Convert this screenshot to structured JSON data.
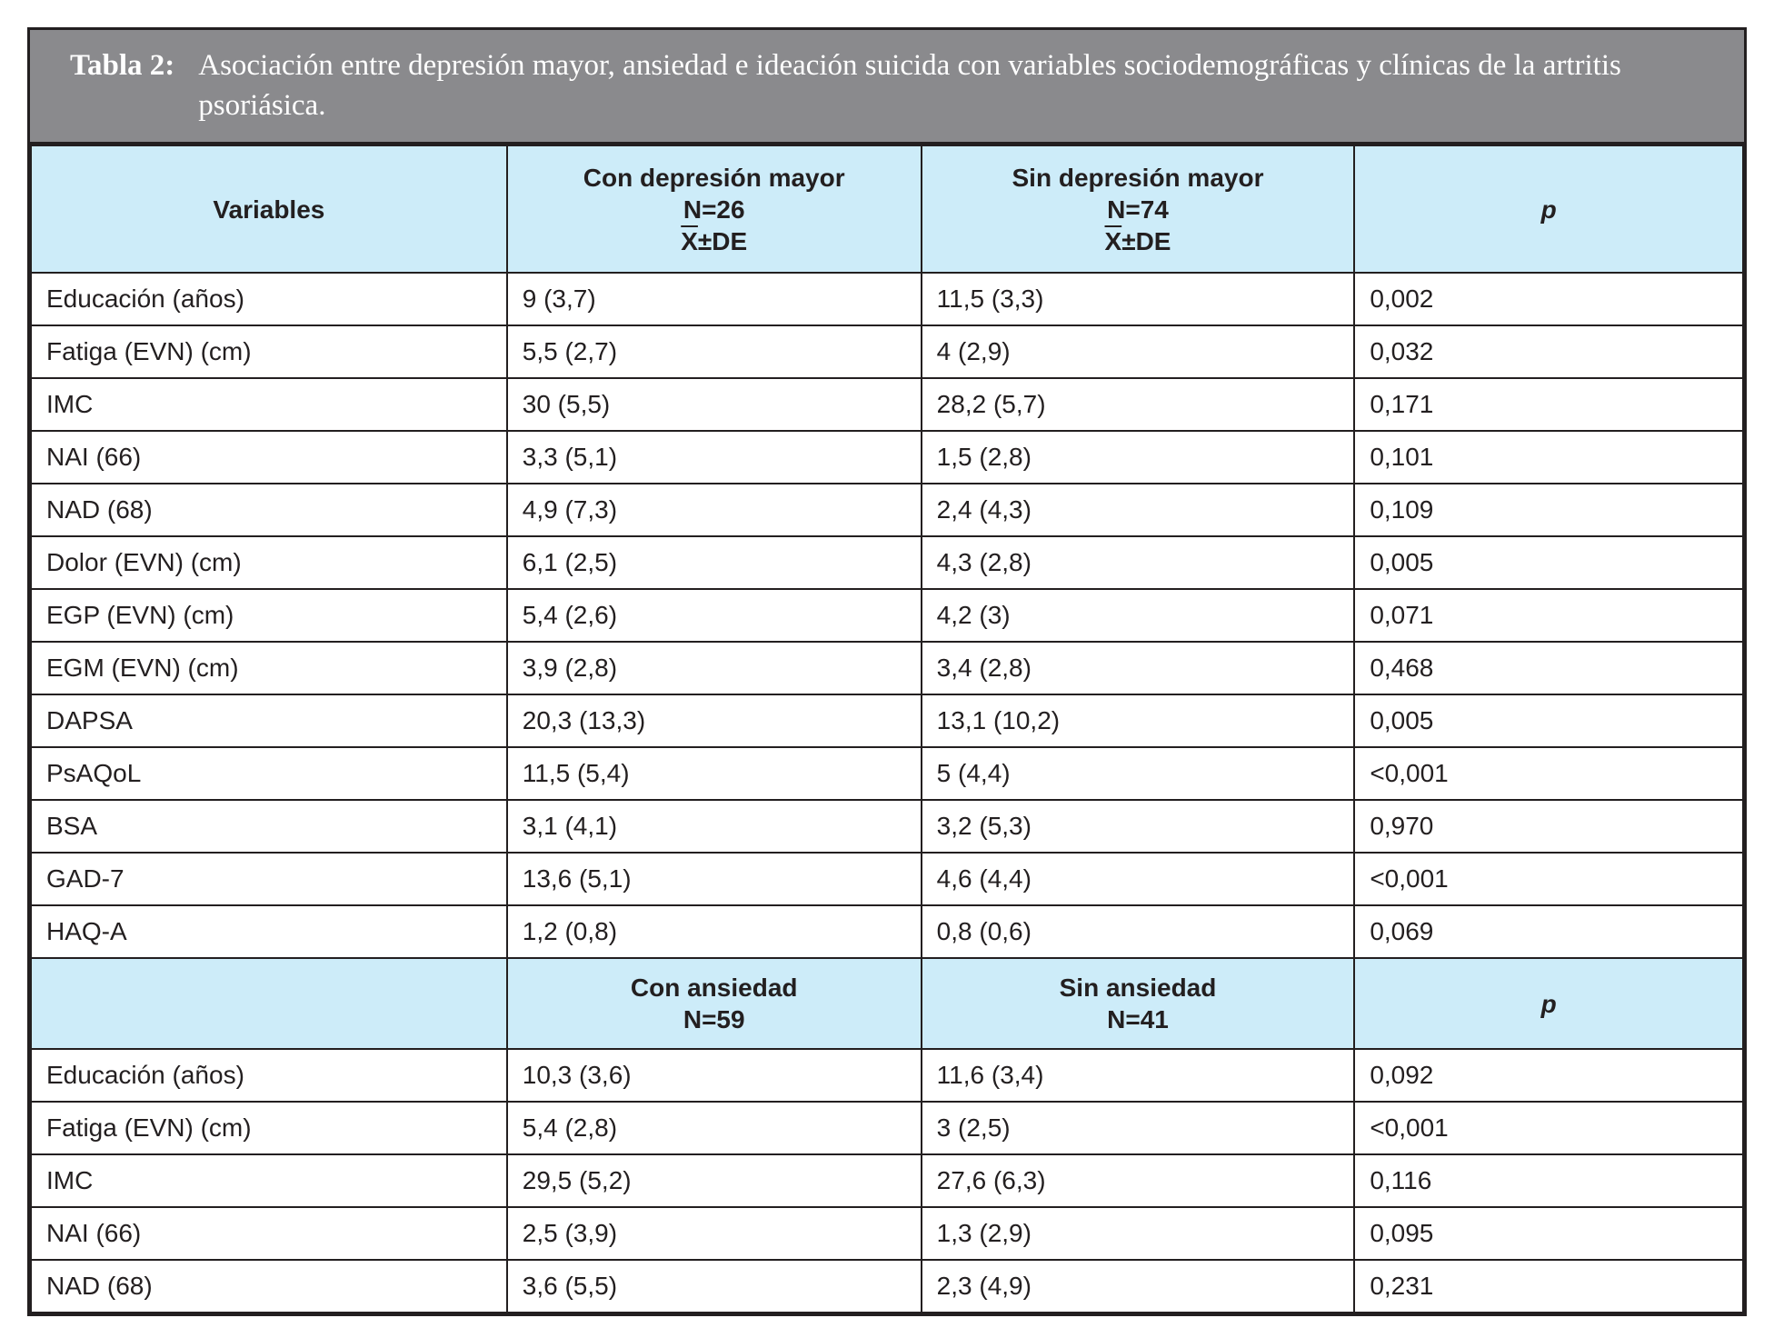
{
  "title": {
    "label": "Tabla 2:",
    "text": "Asociación entre depresión mayor, ansiedad e ideación suicida con variables sociodemográficas y clínicas de la artritis psoriásica."
  },
  "colors": {
    "title_bar_bg": "#8a8a8d",
    "header_bg": "#cdecf9",
    "border": "#231f20",
    "title_text": "#ffffff",
    "body_text": "#231f20"
  },
  "table": {
    "section1": {
      "header": {
        "col1": "Variables",
        "col2": {
          "line1": "Con depresión mayor",
          "line2": "N=26",
          "xbar": "X",
          "de": "±DE"
        },
        "col3": {
          "line1": "Sin depresión mayor",
          "line2": "N=74",
          "xbar": "X",
          "de": "±DE"
        },
        "col4": "p"
      },
      "rows": [
        {
          "variable": "Educación (años)",
          "group1": "9 (3,7)",
          "group2": "11,5 (3,3)",
          "p": "0,002"
        },
        {
          "variable": "Fatiga (EVN) (cm)",
          "group1": "5,5 (2,7)",
          "group2": "4 (2,9)",
          "p": "0,032"
        },
        {
          "variable": "IMC",
          "group1": "30 (5,5)",
          "group2": "28,2 (5,7)",
          "p": "0,171"
        },
        {
          "variable": "NAI (66)",
          "group1": "3,3 (5,1)",
          "group2": "1,5 (2,8)",
          "p": "0,101"
        },
        {
          "variable": "NAD (68)",
          "group1": "4,9 (7,3)",
          "group2": "2,4 (4,3)",
          "p": "0,109"
        },
        {
          "variable": "Dolor (EVN) (cm)",
          "group1": "6,1 (2,5)",
          "group2": "4,3 (2,8)",
          "p": "0,005"
        },
        {
          "variable": "EGP (EVN) (cm)",
          "group1": "5,4 (2,6)",
          "group2": "4,2 (3)",
          "p": "0,071"
        },
        {
          "variable": "EGM (EVN) (cm)",
          "group1": "3,9 (2,8)",
          "group2": "3,4 (2,8)",
          "p": "0,468"
        },
        {
          "variable": "DAPSA",
          "group1": "20,3 (13,3)",
          "group2": "13,1 (10,2)",
          "p": "0,005"
        },
        {
          "variable": "PsAQoL",
          "group1": "11,5 (5,4)",
          "group2": "5 (4,4)",
          "p": "<0,001"
        },
        {
          "variable": "BSA",
          "group1": "3,1 (4,1)",
          "group2": "3,2 (5,3)",
          "p": "0,970"
        },
        {
          "variable": "GAD-7",
          "group1": "13,6 (5,1)",
          "group2": "4,6 (4,4)",
          "p": "<0,001"
        },
        {
          "variable": "HAQ-A",
          "group1": "1,2 (0,8)",
          "group2": "0,8 (0,6)",
          "p": "0,069"
        }
      ]
    },
    "section2": {
      "header": {
        "col1": "",
        "col2": {
          "line1": "Con ansiedad",
          "line2": "N=59"
        },
        "col3": {
          "line1": "Sin ansiedad",
          "line2": "N=41"
        },
        "col4": "p"
      },
      "rows": [
        {
          "variable": "Educación (años)",
          "group1": "10,3 (3,6)",
          "group2": "11,6 (3,4)",
          "p": "0,092"
        },
        {
          "variable": "Fatiga (EVN) (cm)",
          "group1": "5,4 (2,8)",
          "group2": "3 (2,5)",
          "p": "<0,001"
        },
        {
          "variable": "IMC",
          "group1": "29,5 (5,2)",
          "group2": "27,6 (6,3)",
          "p": "0,116"
        },
        {
          "variable": "NAI (66)",
          "group1": "2,5 (3,9)",
          "group2": "1,3 (2,9)",
          "p": "0,095"
        },
        {
          "variable": "NAD (68)",
          "group1": "3,6 (5,5)",
          "group2": "2,3 (4,9)",
          "p": "0,231"
        }
      ]
    }
  }
}
